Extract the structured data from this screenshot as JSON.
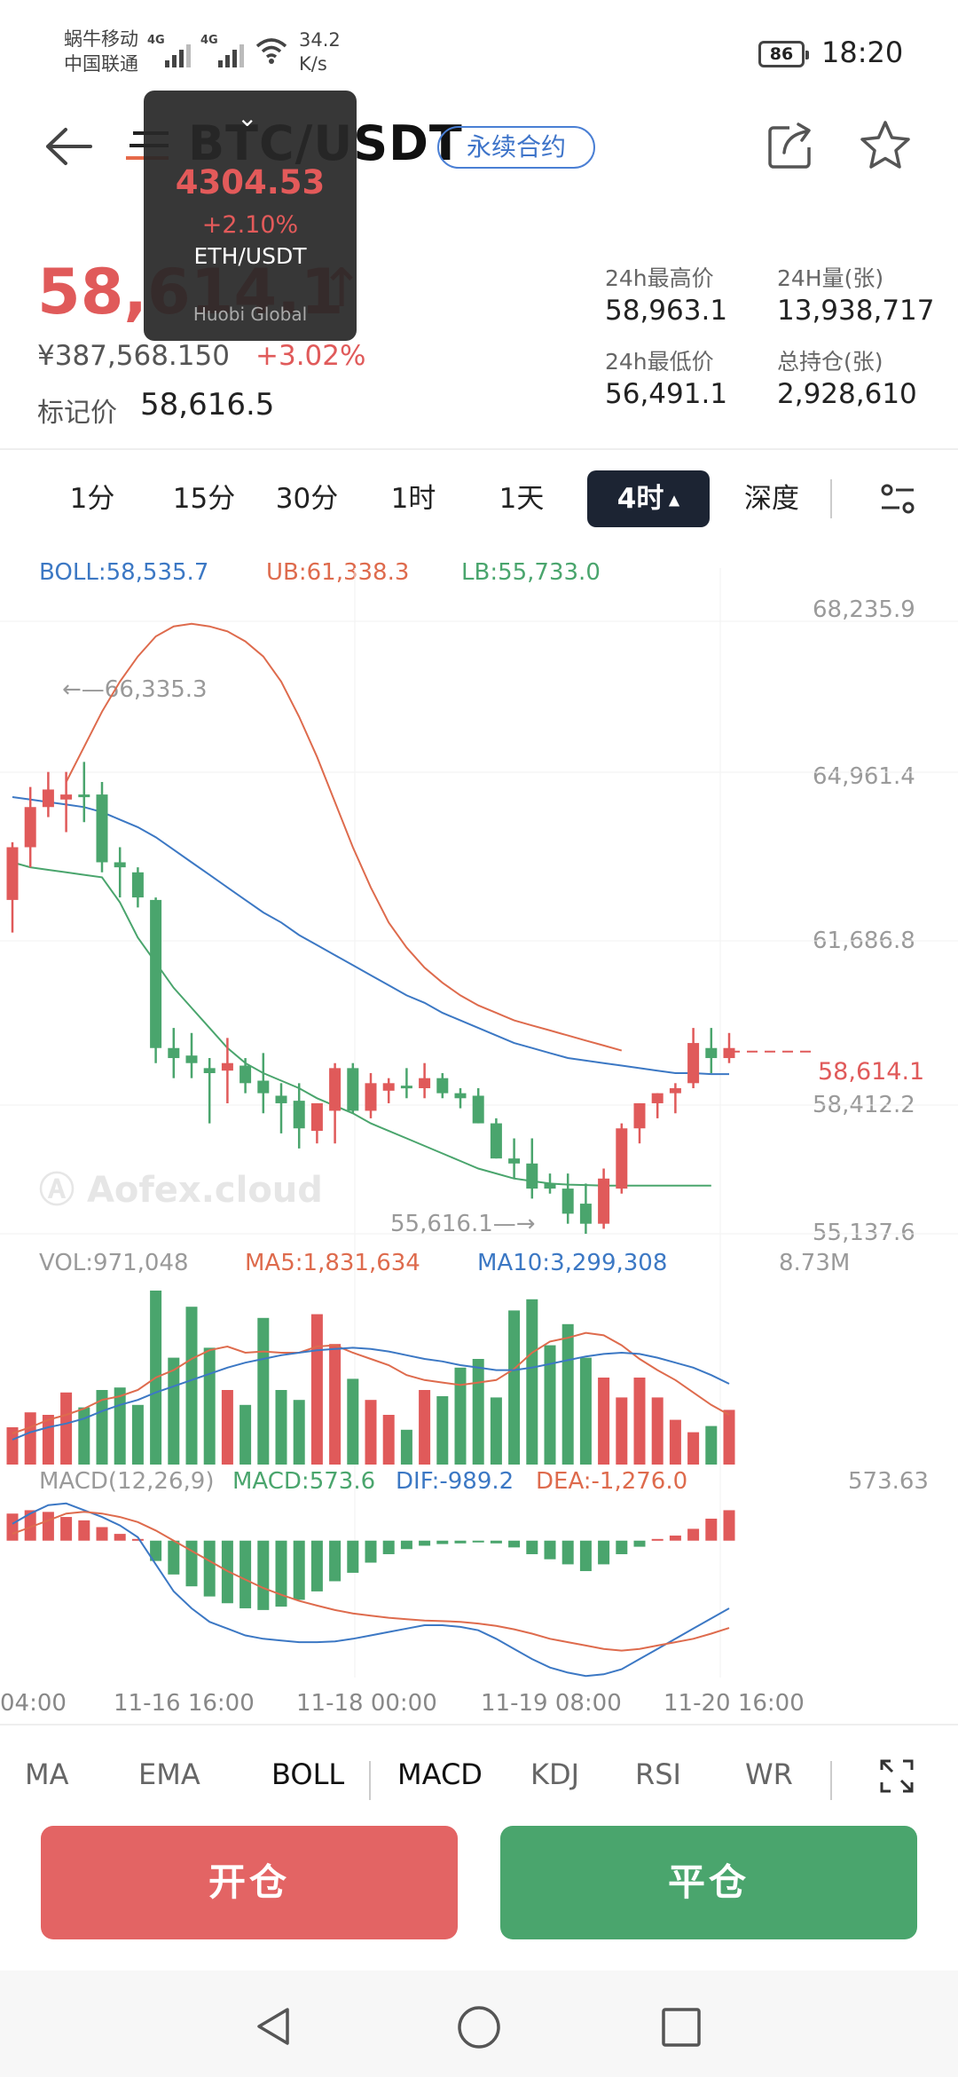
{
  "status_bar": {
    "carrier1": "蜗牛移动",
    "carrier2": "中国联通",
    "network1": "4G",
    "network2": "4G",
    "speed_value": "34.2",
    "speed_unit": "K/s",
    "battery": "86",
    "time": "18:20"
  },
  "header": {
    "title": "BTC/USDT",
    "tag": "永续合约",
    "back_icon": "back-arrow-icon",
    "menu_icon": "menu-icon",
    "share_icon": "share-icon",
    "star_icon": "star-icon"
  },
  "popup": {
    "price": "4304.53",
    "change": "+2.10%",
    "pair": "ETH/USDT",
    "brand": "Huobi Global"
  },
  "ticker": {
    "last_price": "58,614.1",
    "cny_value": "¥387,568.150",
    "change_pct": "+3.02%",
    "mark_label": "标记价",
    "mark_price": "58,616.5",
    "high_label": "24h最高价",
    "high": "58,963.1",
    "volume_label": "24H量(张)",
    "volume": "13,938,717",
    "low_label": "24h最低价",
    "low": "56,491.1",
    "open_interest_label": "总持仓(张)",
    "open_interest": "2,928,610"
  },
  "time_tabs": [
    "1分",
    "15分",
    "30分",
    "1时",
    "1天",
    "4时",
    "深度"
  ],
  "active_tab": "4时",
  "colors": {
    "up": "#e05a5a",
    "down": "#4aa56d",
    "boll": "#3c78c4",
    "ub": "#de6b4d",
    "lb": "#4aa56d",
    "dark": "#1c2433"
  },
  "boll_header": {
    "boll": "BOLL:58,535.7",
    "ub": "UB:61,338.3",
    "lb": "LB:55,733.0"
  },
  "price_axis": [
    "68,235.9",
    "64,961.4",
    "61,686.8",
    "58,412.2",
    "55,137.6"
  ],
  "price_tag": "58,614.1",
  "annotations": {
    "high": "66,335.3",
    "low": "55,616.1",
    "watermark": "Aofex.cloud"
  },
  "vol_header": {
    "vol": "VOL:971,048",
    "ma5": "MA5:1,831,634",
    "ma10": "MA10:3,299,308",
    "axis": "8.73M"
  },
  "macd_header": {
    "macd_label": "MACD(12,26,9)",
    "macd": "MACD:573.6",
    "dif": "DIF:-989.2",
    "dea": "DEA:-1,276.0",
    "axis": "573.63"
  },
  "time_axis": [
    "04:00",
    "11-16 16:00",
    "11-18 00:00",
    "11-19 08:00",
    "11-20 16:00"
  ],
  "indicator_tabs": [
    "MA",
    "EMA",
    "BOLL",
    "MACD",
    "KDJ",
    "RSI",
    "WR"
  ],
  "buttons": {
    "open": "开仓",
    "close": "平仓"
  },
  "chart_data": {
    "type": "candlestick",
    "interval": "4时",
    "candles": [
      {
        "o": 60850,
        "h": 62000,
        "l": 60200,
        "c": 61900
      },
      {
        "o": 61900,
        "h": 63100,
        "l": 61500,
        "c": 62700
      },
      {
        "o": 62700,
        "h": 63400,
        "l": 62500,
        "c": 63050
      },
      {
        "o": 62850,
        "h": 63400,
        "l": 62200,
        "c": 62950
      },
      {
        "o": 62950,
        "h": 63600,
        "l": 62400,
        "c": 62900
      },
      {
        "o": 62950,
        "h": 63200,
        "l": 61400,
        "c": 61600
      },
      {
        "o": 61600,
        "h": 61900,
        "l": 60900,
        "c": 61500
      },
      {
        "o": 61400,
        "h": 61500,
        "l": 60700,
        "c": 60900
      },
      {
        "o": 60850,
        "h": 60900,
        "l": 57600,
        "c": 57900
      },
      {
        "o": 57900,
        "h": 58300,
        "l": 57300,
        "c": 57700
      },
      {
        "o": 57750,
        "h": 58200,
        "l": 57300,
        "c": 57600
      },
      {
        "o": 57500,
        "h": 57700,
        "l": 56400,
        "c": 57400
      },
      {
        "o": 57450,
        "h": 58100,
        "l": 56800,
        "c": 57600
      },
      {
        "o": 57550,
        "h": 57700,
        "l": 57000,
        "c": 57200
      },
      {
        "o": 57250,
        "h": 57800,
        "l": 56600,
        "c": 57000
      },
      {
        "o": 56950,
        "h": 57200,
        "l": 56200,
        "c": 56800
      },
      {
        "o": 56850,
        "h": 57200,
        "l": 55900,
        "c": 56300
      },
      {
        "o": 56250,
        "h": 56800,
        "l": 56000,
        "c": 56800
      },
      {
        "o": 56650,
        "h": 57600,
        "l": 56000,
        "c": 57500
      },
      {
        "o": 57500,
        "h": 57600,
        "l": 56600,
        "c": 56650
      },
      {
        "o": 56650,
        "h": 57400,
        "l": 56500,
        "c": 57200
      },
      {
        "o": 57050,
        "h": 57300,
        "l": 56800,
        "c": 57200
      },
      {
        "o": 57150,
        "h": 57500,
        "l": 56900,
        "c": 57100
      },
      {
        "o": 57100,
        "h": 57600,
        "l": 56900,
        "c": 57300
      },
      {
        "o": 57300,
        "h": 57400,
        "l": 56900,
        "c": 57000
      },
      {
        "o": 57000,
        "h": 57100,
        "l": 56700,
        "c": 56900
      },
      {
        "o": 56950,
        "h": 57100,
        "l": 56400,
        "c": 56400
      },
      {
        "o": 56400,
        "h": 56500,
        "l": 55700,
        "c": 55700
      },
      {
        "o": 55700,
        "h": 56100,
        "l": 55300,
        "c": 55600
      },
      {
        "o": 55600,
        "h": 56100,
        "l": 54900,
        "c": 55100
      },
      {
        "o": 55200,
        "h": 55400,
        "l": 55000,
        "c": 55100
      },
      {
        "o": 55100,
        "h": 55400,
        "l": 54400,
        "c": 54600
      },
      {
        "o": 54800,
        "h": 55200,
        "l": 54200,
        "c": 54400
      },
      {
        "o": 54400,
        "h": 55500,
        "l": 54300,
        "c": 55300
      },
      {
        "o": 55100,
        "h": 56400,
        "l": 55000,
        "c": 56300
      },
      {
        "o": 56300,
        "h": 56800,
        "l": 56000,
        "c": 56800
      },
      {
        "o": 56800,
        "h": 57000,
        "l": 56500,
        "c": 57000
      },
      {
        "o": 57000,
        "h": 57200,
        "l": 56600,
        "c": 57100
      },
      {
        "o": 57200,
        "h": 58300,
        "l": 57100,
        "c": 58000
      },
      {
        "o": 57900,
        "h": 58300,
        "l": 57400,
        "c": 57700
      },
      {
        "o": 57700,
        "h": 58200,
        "l": 57600,
        "c": 57900
      }
    ],
    "boll_mid": [
      62900,
      62850,
      62800,
      62750,
      62700,
      62600,
      62450,
      62300,
      62100,
      61850,
      61600,
      61350,
      61100,
      60850,
      60600,
      60400,
      60150,
      59950,
      59750,
      59550,
      59350,
      59150,
      58950,
      58800,
      58600,
      58450,
      58300,
      58150,
      58000,
      57900,
      57800,
      57700,
      57650,
      57600,
      57550,
      57500,
      57450,
      57400,
      57400,
      57380,
      57380
    ],
    "boll_ub": [
      63200,
      63900,
      64600,
      65200,
      65700,
      66100,
      66300,
      66350,
      66300,
      66200,
      66000,
      65700,
      65200,
      64500,
      63700,
      62800,
      61900,
      61100,
      60400,
      59900,
      59500,
      59200,
      58950,
      58750,
      58600,
      58450,
      58350,
      58250,
      58150,
      58050,
      57950,
      57850
    ],
    "boll_ub_start": 3,
    "boll_lb": [
      61600,
      61500,
      61450,
      61400,
      61350,
      61300,
      60800,
      60100,
      59600,
      59100,
      58700,
      58300,
      57900,
      57600,
      57400,
      57250,
      57100,
      56900,
      56750,
      56600,
      56400,
      56250,
      56100,
      55950,
      55800,
      55650,
      55500,
      55400,
      55300,
      55250,
      55200,
      55180,
      55170,
      55160,
      55160,
      55160,
      55160,
      55160,
      55160,
      55160
    ],
    "ylim": [
      54200,
      66400
    ],
    "volume": [
      30,
      42,
      40,
      58,
      46,
      60,
      62,
      48,
      140,
      86,
      127,
      94,
      60,
      48,
      118,
      60,
      52,
      121,
      97,
      69,
      52,
      40,
      28,
      60,
      55,
      78,
      85,
      54,
      124,
      133,
      96,
      113,
      86,
      70,
      54,
      70,
      54,
      36,
      26,
      31,
      44
    ],
    "vol_ma5": [
      25,
      30,
      36,
      40,
      45,
      52,
      55,
      60,
      70,
      76,
      85,
      92,
      95,
      90,
      91,
      90,
      90,
      95,
      96,
      90,
      85,
      80,
      72,
      68,
      66,
      64,
      66,
      68,
      77,
      90,
      99,
      102,
      106,
      104,
      96,
      85,
      76,
      68,
      58,
      48,
      40
    ],
    "vol_ma10": [
      20,
      26,
      30,
      33,
      37,
      43,
      48,
      52,
      58,
      63,
      68,
      73,
      78,
      82,
      85,
      88,
      90,
      92,
      93,
      94,
      93,
      91,
      88,
      85,
      83,
      80,
      78,
      76,
      76,
      78,
      81,
      84,
      87,
      89,
      90,
      89,
      86,
      82,
      78,
      72,
      65
    ],
    "vol_ylim": [
      0,
      150
    ],
    "macd_hist": [
      80,
      90,
      85,
      70,
      60,
      40,
      20,
      5,
      -60,
      -100,
      -135,
      -165,
      -185,
      -200,
      -205,
      -195,
      -175,
      -150,
      -120,
      -95,
      -65,
      -40,
      -25,
      -15,
      -10,
      -8,
      -5,
      -8,
      -20,
      -40,
      -55,
      -70,
      -90,
      -70,
      -40,
      -18,
      5,
      15,
      35,
      65,
      90
    ],
    "macd_dif": [
      50,
      80,
      105,
      110,
      90,
      70,
      45,
      10,
      -70,
      -150,
      -200,
      -240,
      -260,
      -280,
      -290,
      -295,
      -300,
      -300,
      -298,
      -290,
      -280,
      -270,
      -260,
      -250,
      -250,
      -255,
      -265,
      -290,
      -320,
      -350,
      -375,
      -390,
      -400,
      -395,
      -380,
      -350,
      -320,
      -290,
      -260,
      -230,
      -200
    ],
    "macd_dea": [
      20,
      40,
      60,
      80,
      85,
      80,
      70,
      55,
      30,
      0,
      -30,
      -60,
      -90,
      -115,
      -140,
      -160,
      -178,
      -192,
      -205,
      -215,
      -222,
      -228,
      -232,
      -236,
      -238,
      -240,
      -245,
      -252,
      -262,
      -275,
      -290,
      -300,
      -310,
      -320,
      -325,
      -320,
      -310,
      -300,
      -290,
      -275,
      -258
    ],
    "macd_ylim": [
      -410,
      120
    ]
  }
}
